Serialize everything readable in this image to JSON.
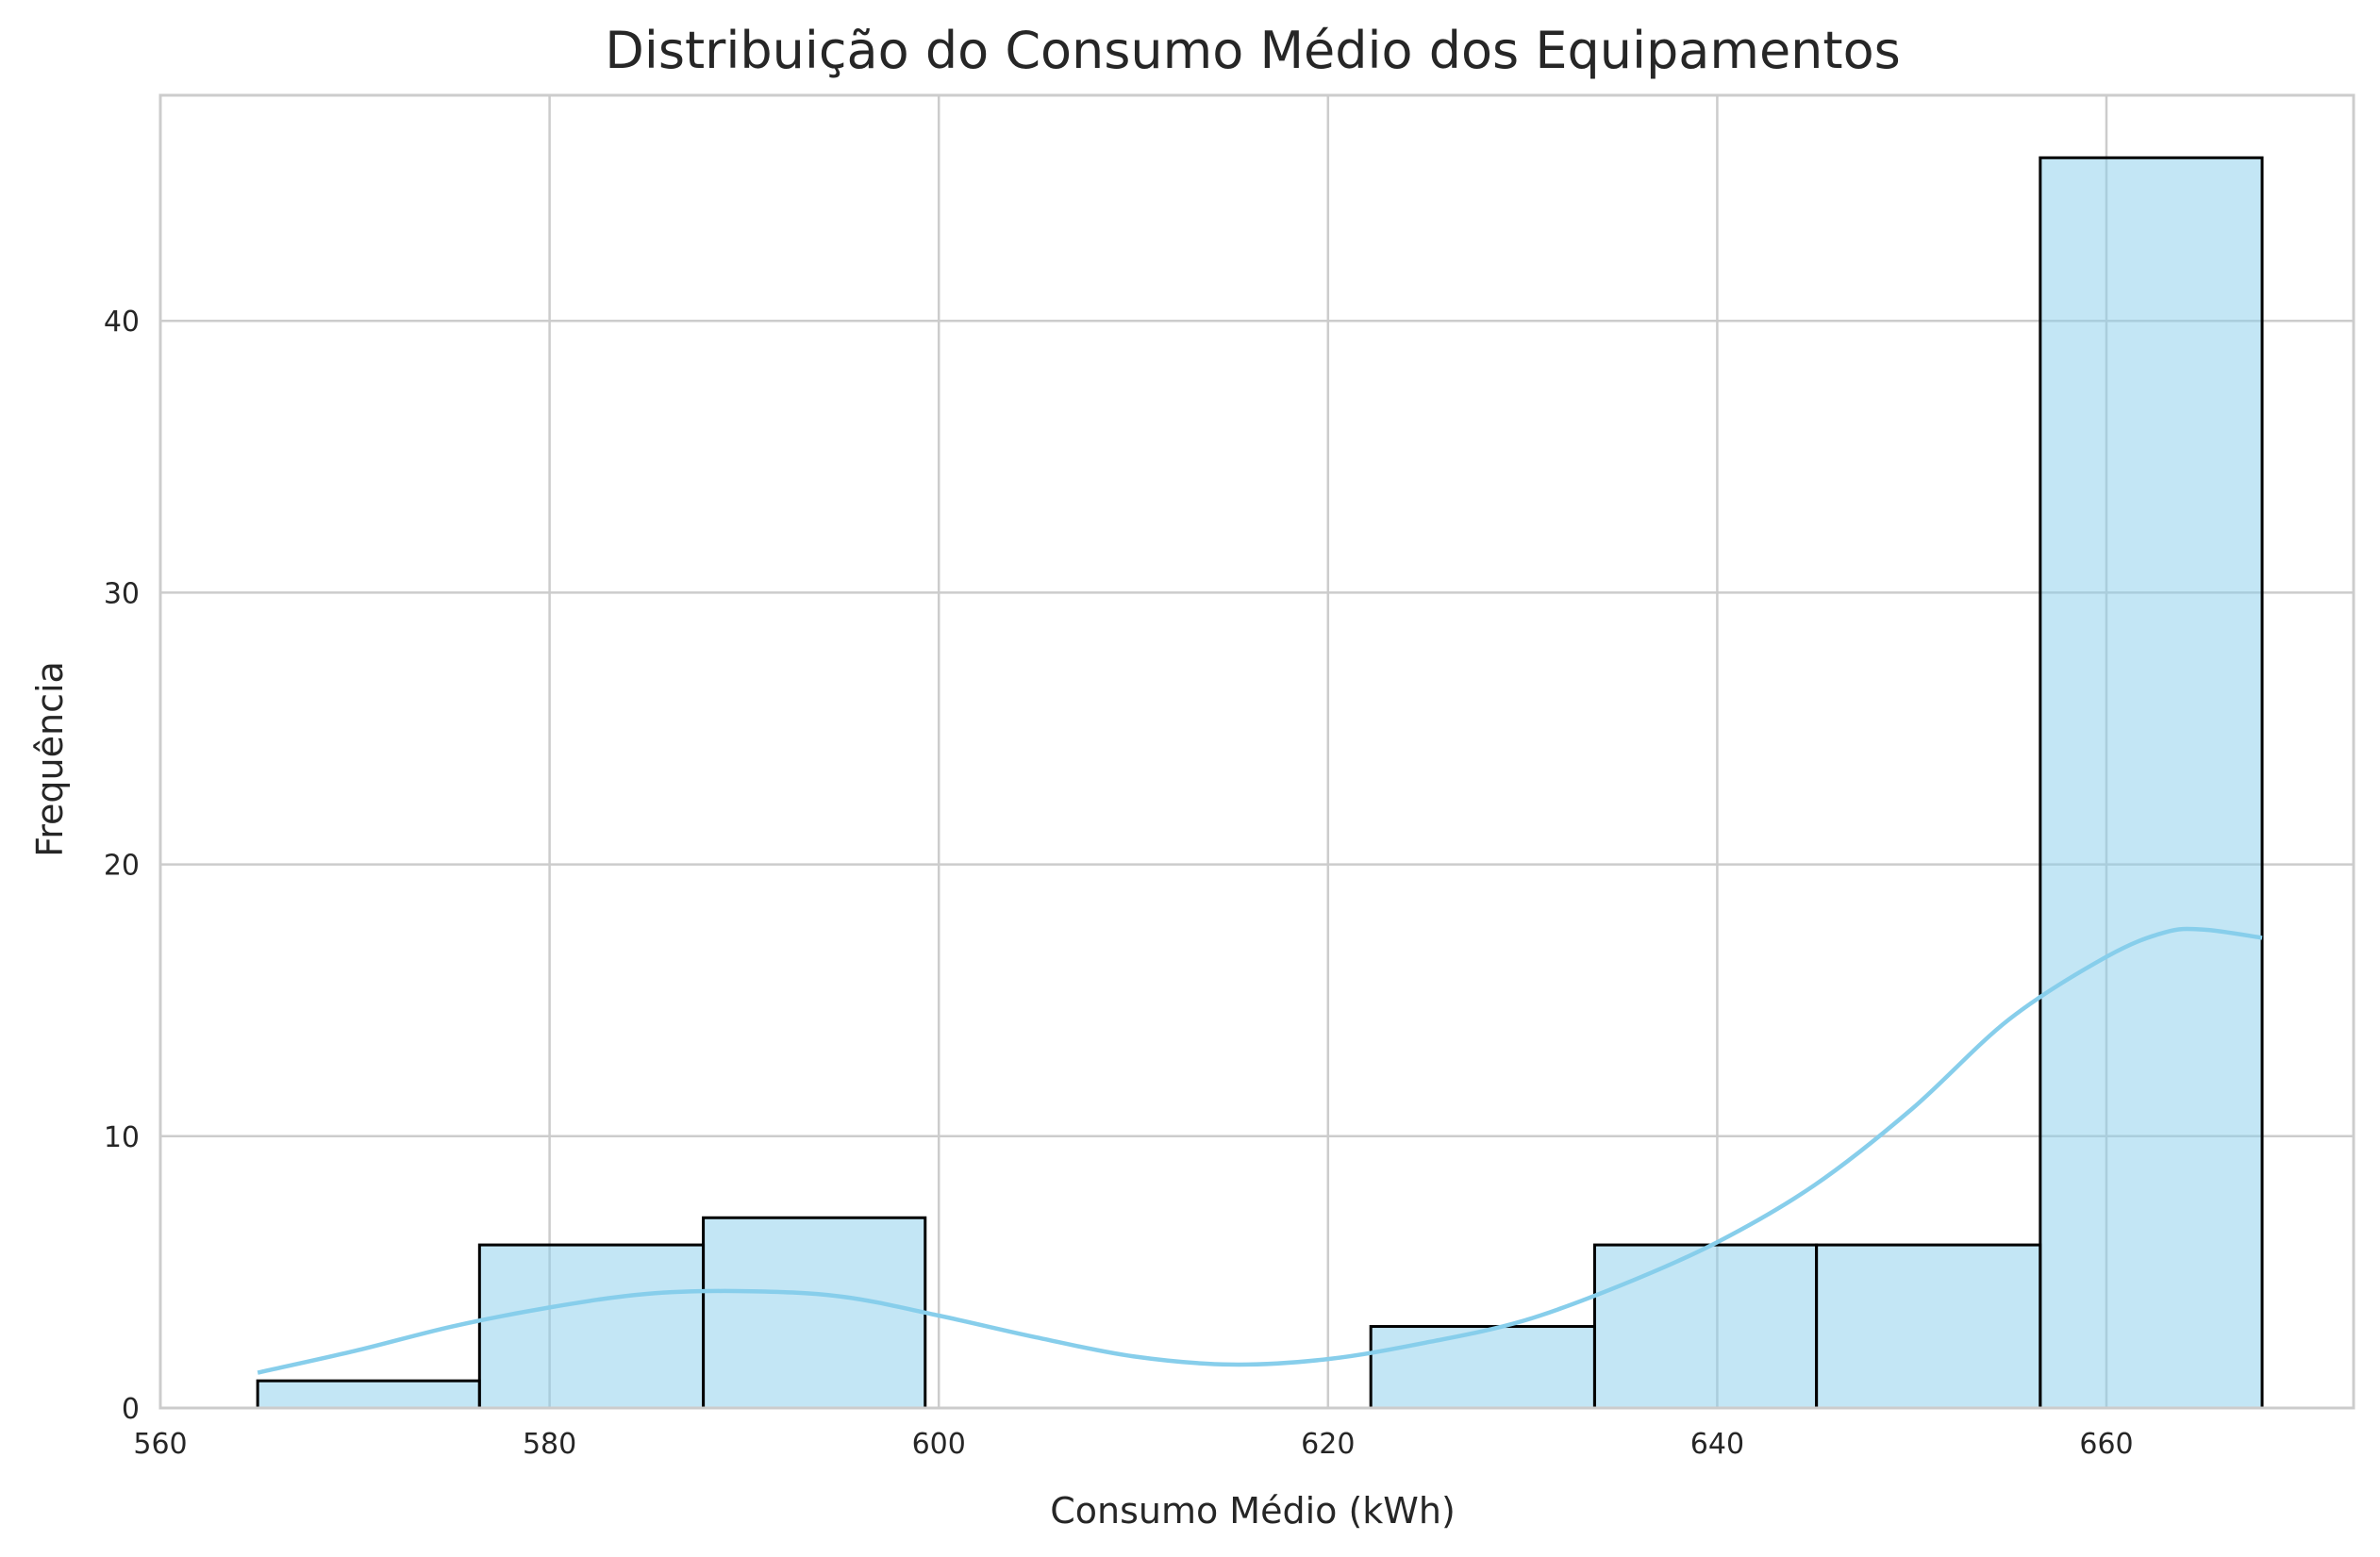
{
  "chart_data": {
    "type": "bar",
    "title": "Distribuição do Consumo Médio dos Equipamentos",
    "xlabel": "Consumo Médio (kWh)",
    "ylabel": "Frequência",
    "xlim": [
      560,
      672.7
    ],
    "ylim": [
      0,
      48.3
    ],
    "xticks": [
      560,
      580,
      600,
      620,
      640,
      660
    ],
    "yticks": [
      0,
      10,
      20,
      30,
      40
    ],
    "grid": true,
    "legend": "none",
    "bar_color": "#87CEEB",
    "bar_opacity": 0.5,
    "edge_color": "#000000",
    "kde_color": "#87CEEB",
    "bins": [
      {
        "x0": 565.0,
        "x1": 576.4,
        "count": 1
      },
      {
        "x0": 576.4,
        "x1": 587.9,
        "count": 6
      },
      {
        "x0": 587.9,
        "x1": 599.3,
        "count": 7
      },
      {
        "x0": 599.3,
        "x1": 610.8,
        "count": 0
      },
      {
        "x0": 610.8,
        "x1": 622.2,
        "count": 0
      },
      {
        "x0": 622.2,
        "x1": 633.7,
        "count": 3
      },
      {
        "x0": 633.7,
        "x1": 645.1,
        "count": 6
      },
      {
        "x0": 645.1,
        "x1": 656.6,
        "count": 6
      },
      {
        "x0": 656.6,
        "x1": 668.0,
        "count": 46
      }
    ],
    "kde": {
      "x": [
        565,
        570,
        575,
        580,
        585,
        590,
        595,
        600,
        605,
        610,
        615,
        620,
        625,
        630,
        635,
        640,
        645,
        650,
        655,
        660,
        663,
        665,
        668
      ],
      "y": [
        1.3,
        2.1,
        3.0,
        3.7,
        4.2,
        4.3,
        4.1,
        3.4,
        2.6,
        1.9,
        1.6,
        1.8,
        2.4,
        3.2,
        4.5,
        6.1,
        8.2,
        11.0,
        14.3,
        16.6,
        17.5,
        17.6,
        17.3
      ]
    }
  }
}
